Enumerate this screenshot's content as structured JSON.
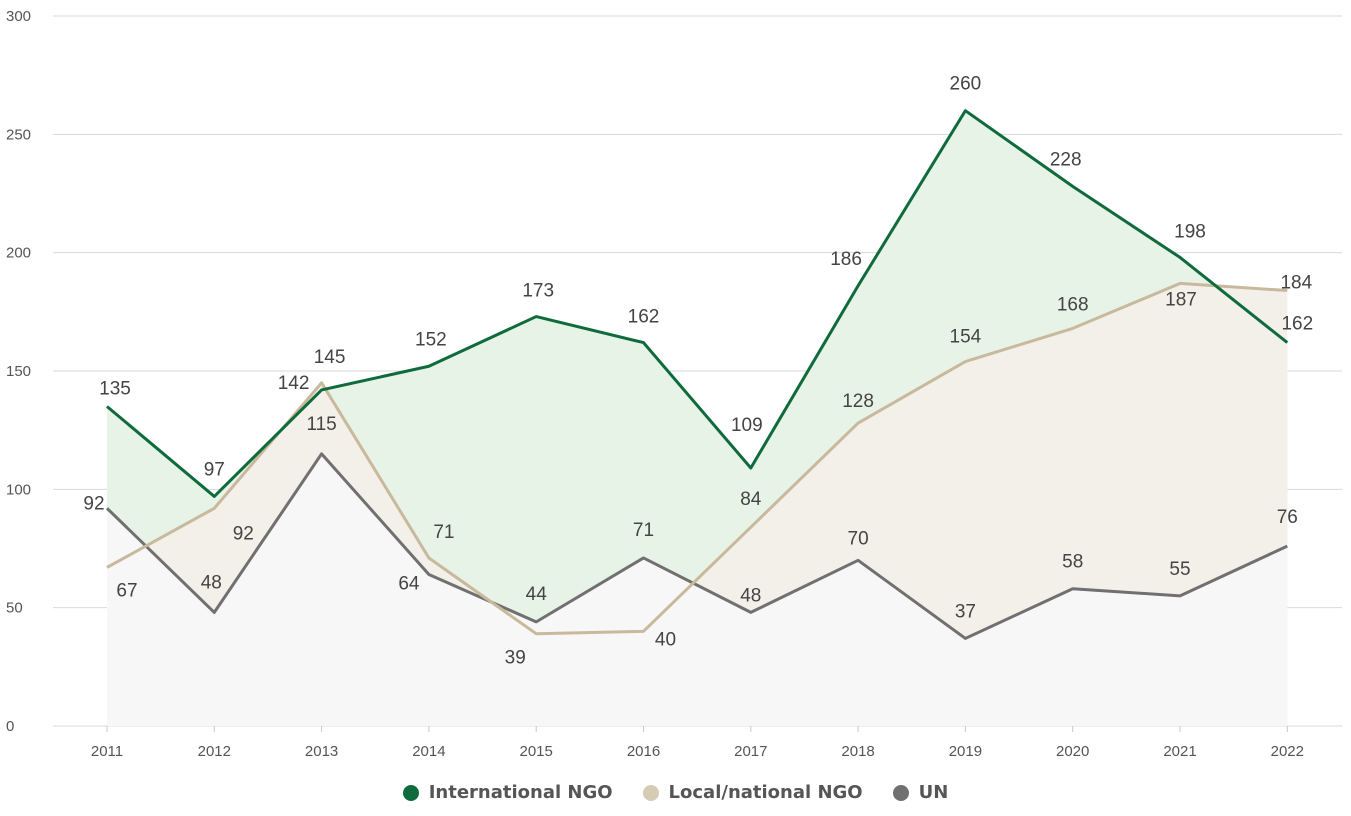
{
  "chart_data": {
    "type": "area",
    "categories": [
      "2011",
      "2012",
      "2013",
      "2014",
      "2015",
      "2016",
      "2017",
      "2018",
      "2019",
      "2020",
      "2021",
      "2022"
    ],
    "ylim": [
      0,
      300
    ],
    "yticks": [
      0,
      50,
      100,
      150,
      200,
      250,
      300
    ],
    "grid": true,
    "legend_position": "bottom-center",
    "series": [
      {
        "name": "International NGO",
        "color": "#0f6b3c",
        "fill": "#e8f3e8",
        "values": [
          135,
          97,
          142,
          152,
          173,
          162,
          109,
          186,
          260,
          228,
          198,
          162
        ]
      },
      {
        "name": "Local/national NGO",
        "color": "#c8b99c",
        "fill": "#f3f0ea",
        "values": [
          67,
          92,
          145,
          71,
          39,
          40,
          84,
          128,
          154,
          168,
          187,
          184
        ]
      },
      {
        "name": "UN",
        "color": "#707070",
        "fill": "#f7f7f7",
        "values": [
          92,
          48,
          115,
          64,
          44,
          71,
          48,
          70,
          37,
          58,
          55,
          76
        ]
      }
    ]
  }
}
